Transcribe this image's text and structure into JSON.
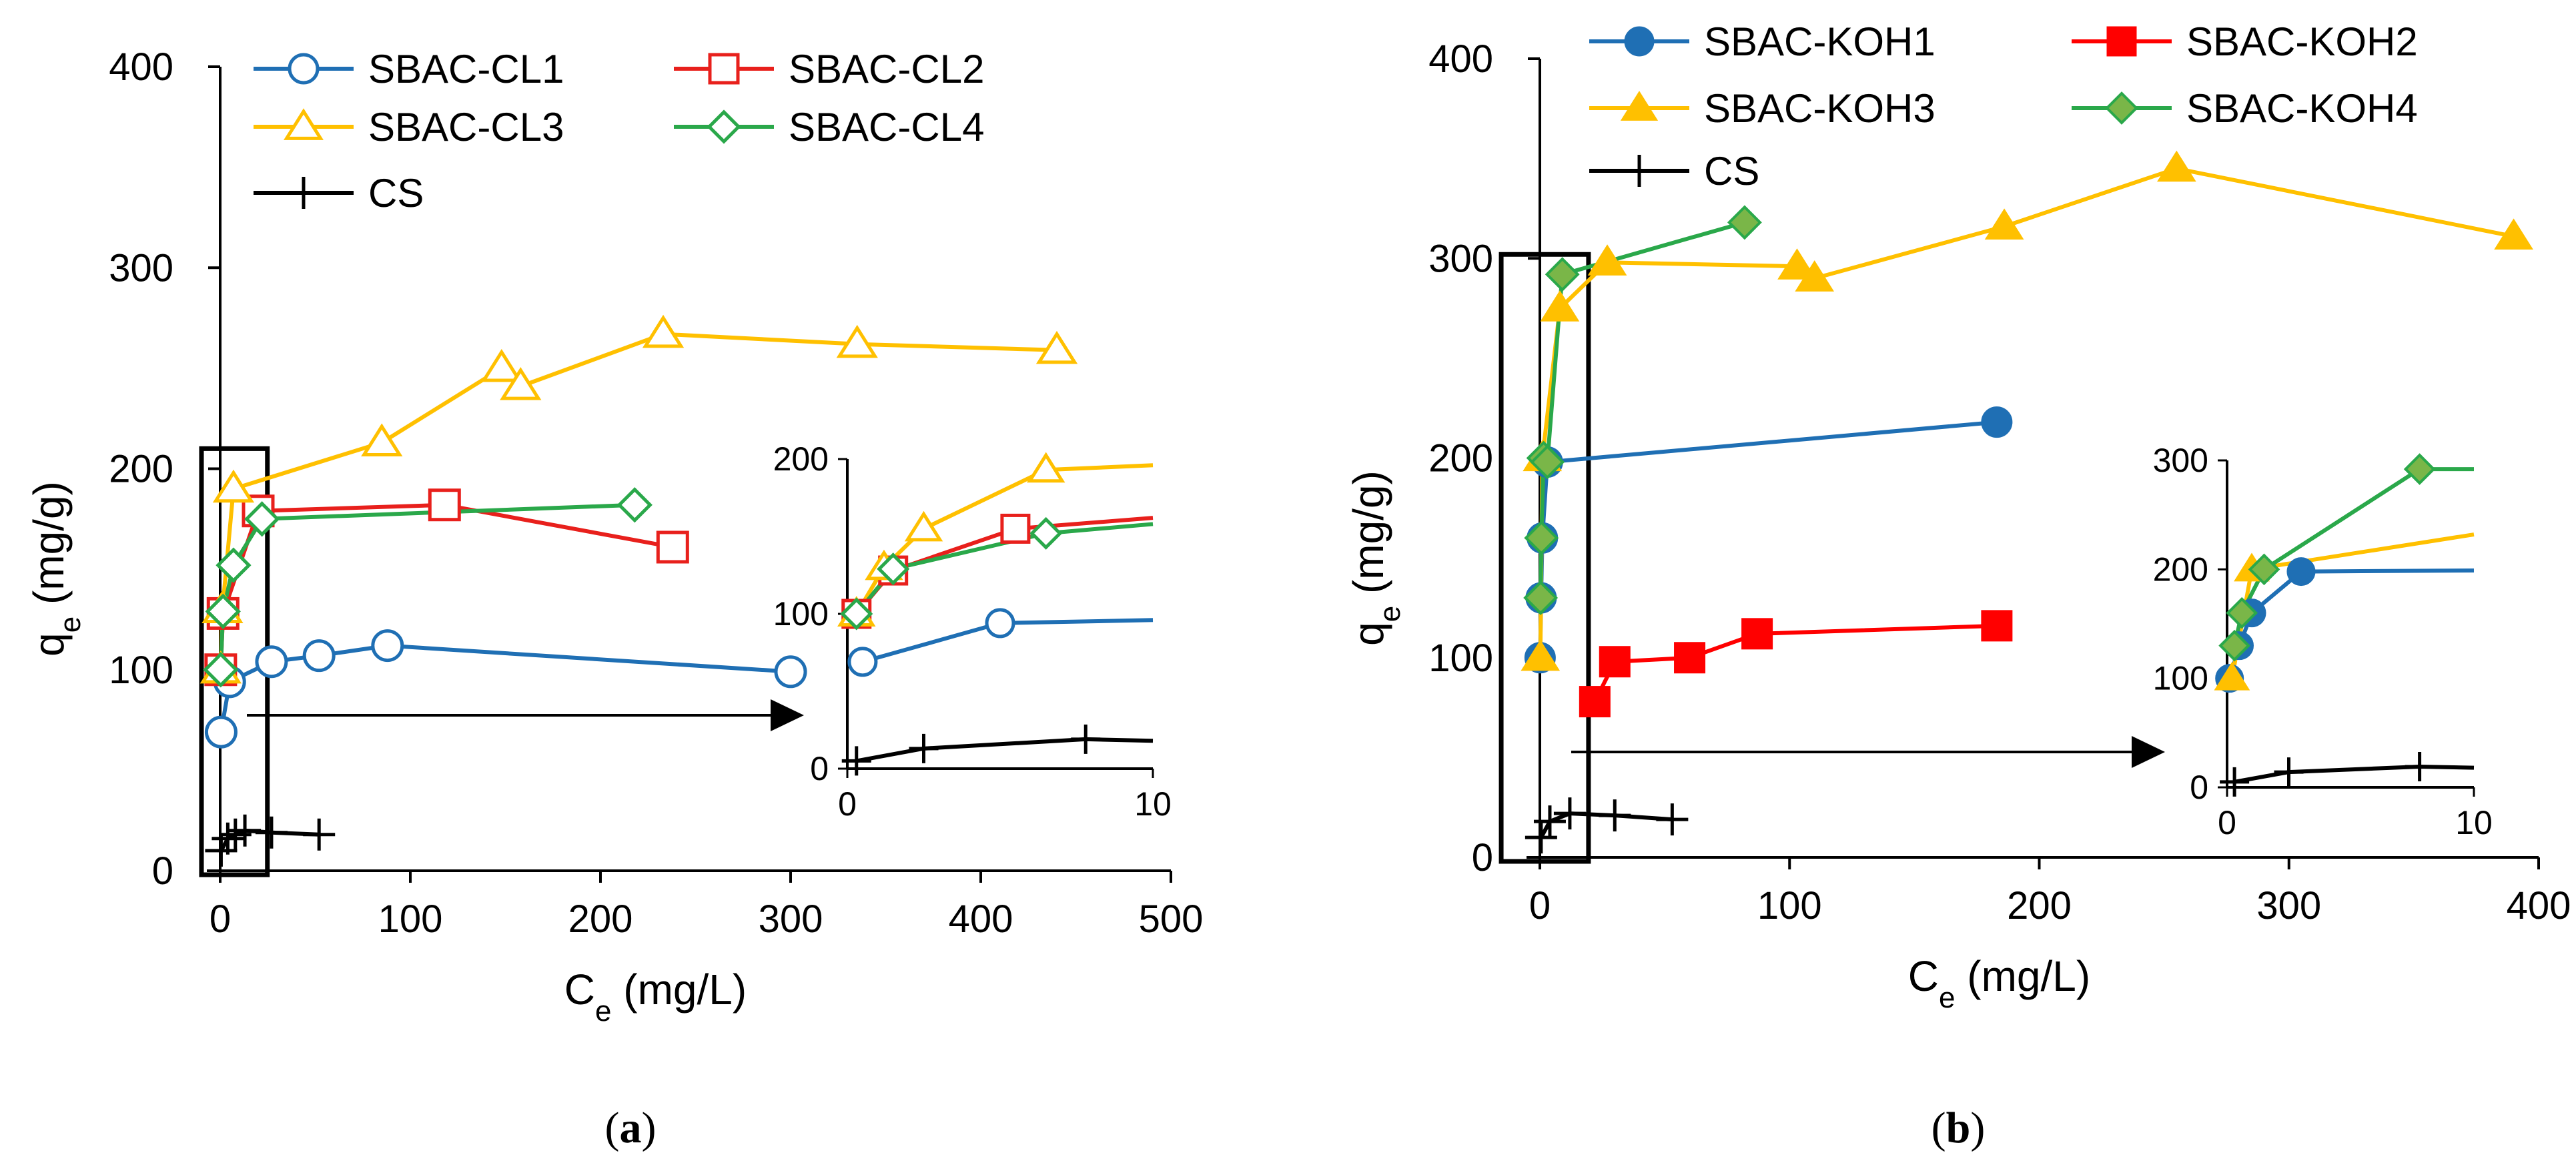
{
  "chart_data": [
    {
      "type": "scatter",
      "panel_label": "a",
      "xlabel": "Ce (mg/L)",
      "ylabel": "qe (mg/g)",
      "xlim": [
        0,
        500
      ],
      "ylim": [
        0,
        400
      ],
      "x_ticks": [
        "0",
        "100",
        "200",
        "300",
        "400",
        "500"
      ],
      "y_ticks": [
        "0",
        "100",
        "200",
        "300",
        "400"
      ],
      "legend": [
        "SBAC-CL1",
        "SBAC-CL2",
        "SBAC-CL3",
        "SBAC-CL4",
        "CS"
      ],
      "highlight_box": {
        "x": [
          0,
          15
        ],
        "y": [
          0,
          210
        ]
      },
      "inset": {
        "xlim": [
          0,
          10
        ],
        "ylim": [
          0,
          200
        ],
        "x_ticks": [
          "0",
          "10"
        ],
        "y_ticks": [
          "0",
          "100",
          "200"
        ]
      },
      "series": [
        {
          "name": "SBAC-CL1",
          "color": "#1f6fb4",
          "marker": "circle-open",
          "x": [
            0.5,
            5,
            27,
            52,
            88,
            300
          ],
          "y": [
            69,
            94,
            104,
            107,
            112,
            99
          ],
          "inset_x": [
            0.5,
            5,
            10
          ],
          "inset_y": [
            69,
            94,
            96
          ]
        },
        {
          "name": "SBAC-CL2",
          "color": "#e8201c",
          "marker": "square-open",
          "x": [
            0.3,
            1.5,
            20,
            118,
            238
          ],
          "y": [
            100,
            128,
            179,
            182,
            161
          ],
          "inset_x": [
            0.3,
            1.5,
            5.5,
            10
          ],
          "inset_y": [
            100,
            128,
            155,
            162
          ]
        },
        {
          "name": "SBAC-CL3",
          "color": "#ffc000",
          "marker": "triangle-open",
          "x": [
            0.3,
            1.2,
            7,
            85,
            148,
            158,
            233,
            335,
            440
          ],
          "y": [
            100,
            130,
            190,
            213,
            250,
            241,
            267,
            262,
            259
          ],
          "inset_x": [
            0.3,
            1.2,
            2.5,
            6.5,
            10
          ],
          "inset_y": [
            100,
            130,
            155,
            193,
            196
          ]
        },
        {
          "name": "SBAC-CL4",
          "color": "#2aa84a",
          "marker": "diamond-open",
          "x": [
            0.3,
            1.5,
            7,
            22,
            218
          ],
          "y": [
            100,
            129,
            152,
            175,
            182
          ],
          "inset_x": [
            0.3,
            1.5,
            6.5,
            10
          ],
          "inset_y": [
            100,
            129,
            152,
            158
          ]
        },
        {
          "name": "CS",
          "color": "#000000",
          "marker": "plus",
          "x": [
            0.5,
            4,
            8,
            13,
            27,
            52
          ],
          "y": [
            10,
            16,
            18,
            20,
            19,
            18
          ],
          "inset_x": [
            0.3,
            2.5,
            7.8,
            10
          ],
          "inset_y": [
            5,
            13,
            19,
            18
          ]
        }
      ]
    },
    {
      "type": "scatter",
      "panel_label": "b",
      "xlabel": "Ce (mg/L)",
      "ylabel": "qe (mg/g)",
      "xlim": [
        0,
        400
      ],
      "ylim": [
        0,
        400
      ],
      "x_ticks": [
        "0",
        "100",
        "200",
        "300",
        "400"
      ],
      "y_ticks": [
        "0",
        "100",
        "200",
        "300",
        "400"
      ],
      "legend": [
        "SBAC-KOH1",
        "SBAC-KOH2",
        "SBAC-KOH3",
        "SBAC-KOH4",
        "CS"
      ],
      "highlight_box": {
        "x": [
          -8,
          12
        ],
        "y": [
          0,
          302
        ]
      },
      "inset": {
        "xlim": [
          0,
          10
        ],
        "ylim": [
          0,
          300
        ],
        "x_ticks": [
          "0",
          "10"
        ],
        "y_ticks": [
          "0",
          "100",
          "200",
          "300"
        ]
      },
      "series": [
        {
          "name": "SBAC-KOH1",
          "color": "#1f6fb4",
          "marker": "circle",
          "x": [
            0.1,
            0.5,
            1,
            3,
            183
          ],
          "y": [
            100,
            130,
            160,
            198,
            218
          ],
          "inset_x": [
            0.1,
            0.5,
            1,
            3,
            10
          ],
          "inset_y": [
            100,
            130,
            160,
            198,
            199
          ]
        },
        {
          "name": "SBAC-KOH2",
          "color": "#ff0000",
          "marker": "square",
          "x": [
            22,
            30,
            60,
            87,
            183
          ],
          "y": [
            78,
            98,
            100,
            112,
            116
          ]
        },
        {
          "name": "SBAC-KOH3",
          "color": "#ffc000",
          "marker": "triangle",
          "x": [
            0.2,
            1,
            8,
            27,
            103,
            110,
            186,
            255,
            390
          ],
          "y": [
            100,
            200,
            275,
            298,
            296,
            290,
            316,
            345,
            311
          ],
          "inset_x": [
            0.2,
            1,
            10
          ],
          "inset_y": [
            100,
            200,
            232
          ]
        },
        {
          "name": "SBAC-KOH4",
          "color": "#2aa84a",
          "marker": "diamond",
          "x": [
            0.3,
            0.6,
            1.5,
            3,
            9,
            82
          ],
          "y": [
            130,
            160,
            200,
            198,
            292,
            318
          ],
          "inset_x": [
            0.3,
            0.6,
            1.5,
            7.8,
            10
          ],
          "inset_y": [
            130,
            160,
            200,
            292,
            292
          ]
        },
        {
          "name": "CS",
          "color": "#000000",
          "marker": "plus",
          "x": [
            0.5,
            4,
            12,
            30,
            53
          ],
          "y": [
            10,
            18,
            22,
            21,
            19
          ],
          "inset_x": [
            0.3,
            2.5,
            7.8,
            10
          ],
          "inset_y": [
            5,
            14,
            19,
            18
          ]
        }
      ]
    }
  ]
}
